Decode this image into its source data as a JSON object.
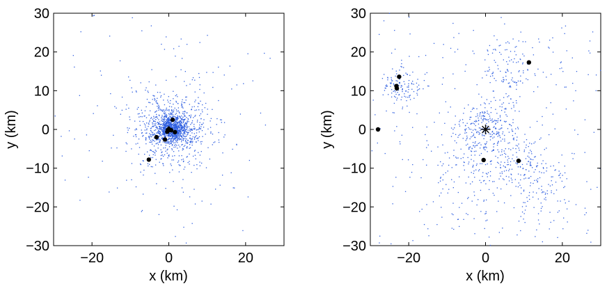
{
  "chart_data": [
    {
      "type": "scatter",
      "panel": "left",
      "xlabel": "x (km)",
      "ylabel": "y (km)",
      "xlim": [
        -30,
        30
      ],
      "ylim": [
        -30,
        30
      ],
      "xticks": [
        -20,
        0,
        20
      ],
      "xtick_labels": [
        "−20",
        "0",
        "20"
      ],
      "yticks": [
        -30,
        -20,
        -10,
        0,
        10,
        20,
        30
      ],
      "ytick_labels": [
        "−30",
        "−20",
        "−10",
        "0",
        "10",
        "20",
        "30"
      ],
      "grid": false,
      "legend": "none",
      "colors": {
        "scatter": "#2f5fe0",
        "station": "#000000"
      },
      "scatter_cloud": {
        "description_free": true,
        "center": [
          0.8,
          0.2
        ],
        "core_sd": 2.2,
        "halo_sd": 8.5,
        "count": 1700
      },
      "stations": [
        {
          "x": 1.0,
          "y": 2.5
        },
        {
          "x": -3.2,
          "y": -2.0
        },
        {
          "x": -1.0,
          "y": -2.6
        },
        {
          "x": -0.4,
          "y": -0.6
        },
        {
          "x": 0.6,
          "y": -0.2
        },
        {
          "x": 1.6,
          "y": -0.7
        },
        {
          "x": -5.2,
          "y": -7.8
        }
      ],
      "center_marker": {
        "x": 0.0,
        "y": 0.0
      }
    },
    {
      "type": "scatter",
      "panel": "right",
      "xlabel": "x (km)",
      "ylabel": "y (km)",
      "xlim": [
        -30,
        30
      ],
      "ylim": [
        -30,
        30
      ],
      "xticks": [
        -20,
        0,
        20
      ],
      "xtick_labels": [
        "−20",
        "0",
        "20"
      ],
      "yticks": [
        -30,
        -20,
        -10,
        0,
        10,
        20,
        30
      ],
      "ytick_labels": [
        "−30",
        "−20",
        "−10",
        "0",
        "10",
        "20",
        "30"
      ],
      "grid": false,
      "legend": "none",
      "colors": {
        "scatter": "#2f5fe0",
        "station": "#000000"
      },
      "scatter_cloud": {
        "count": 1100
      },
      "stations": [
        {
          "x": -22.5,
          "y": 13.6
        },
        {
          "x": -23.2,
          "y": 11.2
        },
        {
          "x": -23.1,
          "y": 10.6
        },
        {
          "x": -28.0,
          "y": 0.0
        },
        {
          "x": -0.5,
          "y": -7.9
        },
        {
          "x": 8.6,
          "y": -8.1
        },
        {
          "x": 11.3,
          "y": 17.3
        }
      ],
      "center_marker": {
        "x": 0.0,
        "y": 0.0,
        "symbol": "asterisk"
      }
    }
  ]
}
